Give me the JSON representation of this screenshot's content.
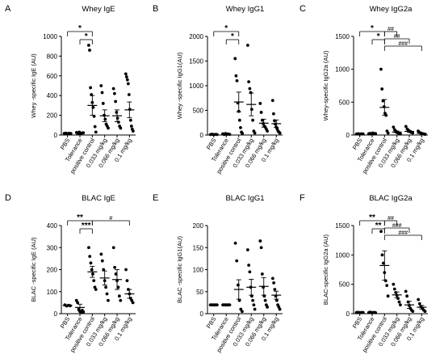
{
  "chart_data": [
    {
      "type": "scatter",
      "panel": "A",
      "title": "Whey IgE",
      "ylabel": "Whey -specific IgE (AU)",
      "ylim": [
        0,
        1000
      ],
      "yticks": [
        "0",
        "200",
        "400",
        "600",
        "800",
        "1000"
      ],
      "categories": [
        "PBS",
        "Tolerance",
        "positive control",
        "0.033 mg/kg",
        "0.066 mg/kg",
        "0.1 mg/kg"
      ],
      "color": "#000000",
      "series": [
        {
          "points": [
            16,
            18,
            14,
            17,
            15
          ],
          "mean": 16,
          "sem": 2
        },
        {
          "points": [
            25,
            12,
            30,
            15,
            20,
            22
          ],
          "mean": 20,
          "sem": 3
        },
        {
          "points": [
            910,
            860,
            480,
            410,
            330,
            280,
            190,
            85,
            30
          ],
          "mean": 300,
          "sem": 100
        },
        {
          "points": [
            500,
            430,
            320,
            200,
            160,
            110,
            90,
            70
          ],
          "mean": 195,
          "sem": 60
        },
        {
          "points": [
            470,
            420,
            340,
            230,
            170,
            130,
            90,
            70
          ],
          "mean": 195,
          "sem": 60
        },
        {
          "points": [
            620,
            590,
            560,
            520,
            410,
            260,
            150,
            90,
            60,
            40
          ],
          "mean": 255,
          "sem": 80
        }
      ],
      "annotations": [
        {
          "label": "*",
          "from": 0,
          "to": 2
        },
        {
          "label": "*",
          "from": 1,
          "to": 2
        }
      ],
      "panel_labels": {
        "letter": "A"
      }
    },
    {
      "type": "scatter",
      "panel": "B",
      "title": "Whey IgG1",
      "ylabel": "Whey -specific IgG1(AU)",
      "ylim": [
        0,
        2000
      ],
      "yticks": [
        "0",
        "500",
        "1000",
        "1500",
        "2000"
      ],
      "categories": [
        "PBS",
        "Tolerance",
        "positive control",
        "0.033 mg/kg",
        "0.066 mg/kg",
        "0.1 mg/kg"
      ],
      "color": "#000000",
      "series": [
        {
          "points": [
            10,
            15,
            8,
            12,
            10
          ],
          "mean": 10,
          "sem": 3
        },
        {
          "points": [
            25,
            10,
            30,
            15,
            20,
            12
          ],
          "mean": 18,
          "sem": 4
        },
        {
          "points": [
            1550,
            1200,
            1100,
            650,
            480,
            300,
            150,
            60,
            30
          ],
          "mean": 670,
          "sem": 200
        },
        {
          "points": [
            1820,
            1080,
            940,
            860,
            520,
            300,
            80,
            40
          ],
          "mean": 620,
          "sem": 230
        },
        {
          "points": [
            640,
            460,
            300,
            230,
            180,
            160,
            120,
            80
          ],
          "mean": 240,
          "sem": 80
        },
        {
          "points": [
            700,
            430,
            290,
            220,
            160,
            120,
            80,
            60,
            40
          ],
          "mean": 230,
          "sem": 75
        }
      ],
      "annotations": [
        {
          "label": "*",
          "from": 0,
          "to": 2
        },
        {
          "label": "*",
          "from": 1,
          "to": 2
        }
      ],
      "panel_labels": {
        "letter": "B"
      }
    },
    {
      "type": "scatter",
      "panel": "C",
      "title": "Whey IgG2a",
      "ylabel": "Whey-specific IgG2a (AU)",
      "ylim": [
        0,
        1500
      ],
      "yticks": [
        "0",
        "500",
        "1000",
        "1500"
      ],
      "categories": [
        "PBS",
        "Tolerance",
        "positive control",
        "0.033 mg/kg",
        "0.066 mg/kg",
        "0.1 mg/kg"
      ],
      "color": "#000000",
      "series": [
        {
          "points": [
            15,
            20,
            12,
            18,
            16
          ],
          "mean": 16,
          "sem": 2
        },
        {
          "points": [
            20,
            25,
            15,
            30,
            18,
            22
          ],
          "mean": 21,
          "sem": 3
        },
        {
          "points": [
            1000,
            700,
            520,
            430,
            330,
            300,
            60,
            30
          ],
          "mean": 420,
          "sem": 120
        },
        {
          "points": [
            120,
            80,
            60,
            40,
            30,
            20,
            15
          ],
          "mean": 45,
          "sem": 15
        },
        {
          "points": [
            130,
            90,
            70,
            50,
            40,
            30
          ],
          "mean": 55,
          "sem": 15
        },
        {
          "points": [
            60,
            40,
            30,
            25,
            20,
            15,
            10
          ],
          "mean": 25,
          "sem": 6
        }
      ],
      "annotations": [
        {
          "label": "*",
          "from": 0,
          "to": 2
        },
        {
          "label": "*",
          "from": 1,
          "to": 2
        },
        {
          "label": "##",
          "from": 2,
          "to": 3
        },
        {
          "label": "##",
          "from": 2,
          "to": 4
        },
        {
          "label": "###",
          "from": 2,
          "to": 5
        }
      ],
      "panel_labels": {
        "letter": "C"
      }
    },
    {
      "type": "scatter",
      "panel": "D",
      "title": "BLAC IgE",
      "ylabel": "BLAC -specific IgE (AU)",
      "ylim": [
        0,
        400
      ],
      "yticks": [
        "0",
        "100",
        "200",
        "300",
        "400"
      ],
      "categories": [
        "PBS",
        "Tolerance",
        "positive control",
        "0.033 mg/kg",
        "0.066 mg/kg",
        "0.1 mg/kg"
      ],
      "color": "#000000",
      "series": [
        {
          "points": [
            40,
            35,
            38,
            36
          ],
          "mean": 37,
          "sem": 2
        },
        {
          "points": [
            60,
            50,
            20,
            10,
            5,
            15,
            8
          ],
          "mean": 28,
          "sem": 15
        },
        {
          "points": [
            300,
            260,
            230,
            200,
            180,
            150,
            120,
            110
          ],
          "mean": 190,
          "sem": 25
        },
        {
          "points": [
            270,
            240,
            200,
            150,
            120,
            90,
            60
          ],
          "mean": 162,
          "sem": 32
        },
        {
          "points": [
            300,
            210,
            180,
            150,
            120,
            80,
            60
          ],
          "mean": 155,
          "sem": 45
        },
        {
          "points": [
            200,
            150,
            110,
            90,
            70,
            60,
            50
          ],
          "mean": 90,
          "sem": 20
        }
      ],
      "annotations": [
        {
          "label": "**",
          "from": 0,
          "to": 2
        },
        {
          "label": "***",
          "from": 1,
          "to": 2
        },
        {
          "label": "#",
          "from": 2,
          "to": 5
        }
      ],
      "panel_labels": {
        "letter": "D"
      }
    },
    {
      "type": "scatter",
      "panel": "E",
      "title": "BLAC IgG1",
      "ylabel": "BLAC -specific IgG1(AU)",
      "ylim": [
        0,
        200
      ],
      "yticks": [
        "0",
        "50",
        "100",
        "150",
        "200"
      ],
      "categories": [
        "PBS",
        "Tolerance",
        "positive control",
        "0.033 mg/kg",
        "0.066 mg/kg",
        "0.1 mg/kg"
      ],
      "color": "#000000",
      "series": [
        {
          "points": [
            20,
            20,
            20,
            20,
            20
          ],
          "mean": 20,
          "sem": 0
        },
        {
          "points": [
            20,
            20,
            20,
            20,
            20,
            20
          ],
          "mean": 20,
          "sem": 0
        },
        {
          "points": [
            160,
            120,
            65,
            30,
            10,
            5
          ],
          "mean": 55,
          "sem": 22
        },
        {
          "points": [
            145,
            110,
            95,
            60,
            40,
            30,
            20,
            10
          ],
          "mean": 60,
          "sem": 18
        },
        {
          "points": [
            165,
            150,
            90,
            60,
            40,
            30,
            20,
            15
          ],
          "mean": 62,
          "sem": 20
        },
        {
          "points": [
            80,
            70,
            55,
            40,
            30,
            20,
            15,
            10
          ],
          "mean": 42,
          "sem": 9
        }
      ],
      "annotations": [],
      "panel_labels": {
        "letter": "E"
      }
    },
    {
      "type": "scatter",
      "panel": "F",
      "title": "BLAC IgG2a",
      "ylabel": "BLAC-specific IgG2a (AU)",
      "ylim": [
        0,
        1500
      ],
      "yticks": [
        "0",
        "500",
        "1000",
        "1500"
      ],
      "categories": [
        "PBS",
        "Tolerance",
        "positive control",
        "0.033 mg/kg",
        "0.066 mg/kg",
        "0.1 mg/kg"
      ],
      "color": "#000000",
      "series": [
        {
          "points": [
            20,
            22,
            18,
            20,
            21
          ],
          "mean": 20,
          "sem": 1
        },
        {
          "points": [
            20,
            25,
            15,
            22,
            18
          ],
          "mean": 20,
          "sem": 2
        },
        {
          "points": [
            1400,
            1000,
            860,
            700,
            560,
            480,
            300
          ],
          "mean": 820,
          "sem": 250
        },
        {
          "points": [
            500,
            420,
            360,
            310,
            260,
            200,
            150
          ],
          "mean": 320,
          "sem": 50
        },
        {
          "points": [
            380,
            300,
            200,
            140,
            90,
            60,
            40
          ],
          "mean": 150,
          "sem": 60
        },
        {
          "points": [
            240,
            170,
            120,
            90,
            60,
            40
          ],
          "mean": 110,
          "sem": 30
        }
      ],
      "annotations": [
        {
          "label": "**",
          "from": 0,
          "to": 2
        },
        {
          "label": "**",
          "from": 1,
          "to": 2
        },
        {
          "label": "##",
          "from": 2,
          "to": 3
        },
        {
          "label": "###",
          "from": 2,
          "to": 4
        },
        {
          "label": "###",
          "from": 2,
          "to": 5
        }
      ],
      "panel_labels": {
        "letter": "F"
      }
    }
  ]
}
